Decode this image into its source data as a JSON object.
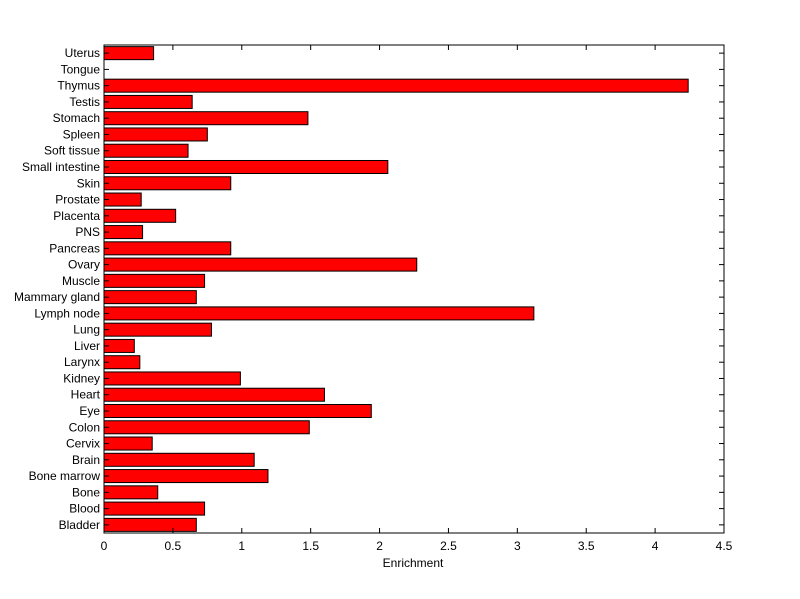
{
  "chart_data": {
    "type": "bar",
    "orientation": "horizontal",
    "title": "",
    "xlabel": "Enrichment",
    "ylabel": "",
    "xlim": [
      0,
      4.5
    ],
    "xticks": [
      0,
      0.5,
      1,
      1.5,
      2,
      2.5,
      3,
      3.5,
      4,
      4.5
    ],
    "grid": false,
    "bar_color": "#ff0000",
    "categories": [
      "Bladder",
      "Blood",
      "Bone",
      "Bone marrow",
      "Brain",
      "Cervix",
      "Colon",
      "Eye",
      "Heart",
      "Kidney",
      "Larynx",
      "Liver",
      "Lung",
      "Lymph node",
      "Mammary gland",
      "Muscle",
      "Ovary",
      "Pancreas",
      "PNS",
      "Placenta",
      "Prostate",
      "Skin",
      "Small intestine",
      "Soft tissue",
      "Spleen",
      "Stomach",
      "Testis",
      "Thymus",
      "Tongue",
      "Uterus"
    ],
    "values": [
      0.67,
      0.73,
      0.39,
      1.19,
      1.09,
      0.35,
      1.49,
      1.94,
      1.6,
      0.99,
      0.26,
      0.22,
      0.78,
      3.12,
      0.67,
      0.73,
      2.27,
      0.92,
      0.28,
      0.52,
      0.27,
      0.92,
      2.06,
      0.61,
      0.75,
      1.48,
      0.64,
      4.24,
      0.0,
      0.36
    ]
  }
}
